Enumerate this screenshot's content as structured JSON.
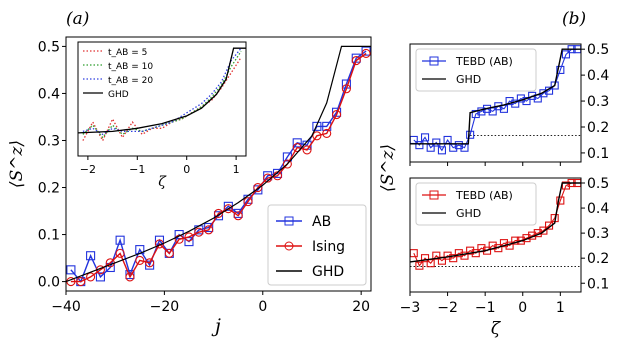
{
  "panel_labels": {
    "a": "(a)",
    "b": "(b)"
  },
  "colors": {
    "AB": "#2233dd",
    "Ising": "#dd1111",
    "GHD": "#000000"
  },
  "chart_data": [
    {
      "id": "a-main",
      "type": "line",
      "xlabel": "j",
      "ylabel": "⟨S^z⟩",
      "xlim": [
        -40,
        22
      ],
      "ylim": [
        -0.02,
        0.52
      ],
      "xticks": [
        -40,
        -20,
        0,
        20
      ],
      "xtick_labels": [
        "−40",
        "−20",
        "0",
        "20"
      ],
      "yticks": [
        0.0,
        0.1,
        0.2,
        0.3,
        0.4,
        0.5
      ],
      "ytick_labels": [
        "0.0",
        "0.1",
        "0.2",
        "0.3",
        "0.4",
        "0.5"
      ],
      "legend": {
        "placement": "bottom-right",
        "entries": [
          "AB",
          "Ising",
          "GHD"
        ]
      },
      "series": [
        {
          "name": "AB",
          "marker": "square",
          "color": "#2233dd",
          "x": [
            -39,
            -37,
            -35,
            -33,
            -31,
            -29,
            -27,
            -25,
            -23,
            -21,
            -19,
            -17,
            -15,
            -13,
            -11,
            -9,
            -7,
            -5,
            -3,
            -1,
            1,
            3,
            5,
            7,
            9,
            11,
            13,
            15,
            17,
            19,
            21
          ],
          "y": [
            0.025,
            0.0,
            0.055,
            0.01,
            0.03,
            0.088,
            0.015,
            0.068,
            0.035,
            0.088,
            0.06,
            0.1,
            0.085,
            0.11,
            0.115,
            0.14,
            0.16,
            0.145,
            0.175,
            0.195,
            0.225,
            0.23,
            0.265,
            0.295,
            0.29,
            0.33,
            0.33,
            0.36,
            0.42,
            0.475,
            0.49
          ]
        },
        {
          "name": "Ising",
          "marker": "circle",
          "color": "#dd1111",
          "x": [
            -39,
            -37,
            -35,
            -33,
            -31,
            -29,
            -27,
            -25,
            -23,
            -21,
            -19,
            -17,
            -15,
            -13,
            -11,
            -9,
            -7,
            -5,
            -3,
            -1,
            1,
            3,
            5,
            7,
            9,
            11,
            13,
            15,
            17,
            19,
            21
          ],
          "y": [
            0.0,
            0.0,
            0.01,
            0.025,
            0.04,
            0.06,
            0.01,
            0.045,
            0.04,
            0.08,
            0.06,
            0.09,
            0.095,
            0.105,
            0.11,
            0.145,
            0.155,
            0.14,
            0.17,
            0.2,
            0.22,
            0.225,
            0.25,
            0.285,
            0.28,
            0.31,
            0.315,
            0.355,
            0.41,
            0.47,
            0.485
          ]
        },
        {
          "name": "GHD",
          "marker": "none",
          "color": "#000000",
          "x": [
            -40,
            -35,
            -30,
            -25,
            -20,
            -15,
            -10,
            -5,
            0,
            5,
            10,
            13,
            16,
            22
          ],
          "y": [
            0.0,
            0.02,
            0.04,
            0.06,
            0.082,
            0.107,
            0.135,
            0.168,
            0.205,
            0.25,
            0.31,
            0.38,
            0.5,
            0.5
          ]
        }
      ]
    },
    {
      "id": "a-inset",
      "type": "line",
      "xlabel": "ζ",
      "ylabel": "",
      "xlim": [
        -2.2,
        1.2
      ],
      "ylim": [
        0.15,
        0.52
      ],
      "xticks": [
        -2,
        -1,
        0,
        1
      ],
      "xtick_labels": [
        "−2",
        "−1",
        "0",
        "1"
      ],
      "legend": {
        "placement": "top-left",
        "entries": [
          "t_AB = 5",
          "t_AB = 10",
          "t_AB = 20",
          "GHD"
        ]
      },
      "series": [
        {
          "name": "t_AB = 5",
          "style": "dotted",
          "color": "#e03030",
          "x": [
            -2.1,
            -1.9,
            -1.7,
            -1.5,
            -1.3,
            -1.1,
            -0.9,
            -0.7,
            -0.5,
            -0.3,
            -0.1,
            0.1,
            0.3,
            0.5,
            0.7,
            0.9,
            1.1
          ],
          "y": [
            0.2,
            0.26,
            0.2,
            0.27,
            0.21,
            0.26,
            0.22,
            0.24,
            0.24,
            0.26,
            0.27,
            0.29,
            0.31,
            0.33,
            0.37,
            0.42,
            0.47
          ]
        },
        {
          "name": "t_AB = 10",
          "style": "dotted",
          "color": "#2e9e2e",
          "x": [
            -2.1,
            -1.9,
            -1.7,
            -1.5,
            -1.3,
            -1.1,
            -0.9,
            -0.7,
            -0.5,
            -0.3,
            -0.1,
            0.1,
            0.3,
            0.5,
            0.7,
            0.9,
            1.1
          ],
          "y": [
            0.22,
            0.25,
            0.21,
            0.25,
            0.22,
            0.24,
            0.23,
            0.24,
            0.25,
            0.26,
            0.27,
            0.29,
            0.31,
            0.34,
            0.38,
            0.44,
            0.49
          ]
        },
        {
          "name": "t_AB = 20",
          "style": "dotted",
          "color": "#3040e0",
          "x": [
            -2.1,
            -1.9,
            -1.7,
            -1.5,
            -1.3,
            -1.1,
            -0.9,
            -0.7,
            -0.5,
            -0.3,
            -0.1,
            0.1,
            0.3,
            0.5,
            0.7,
            0.9,
            1.1
          ],
          "y": [
            0.23,
            0.24,
            0.22,
            0.24,
            0.23,
            0.23,
            0.23,
            0.24,
            0.25,
            0.26,
            0.28,
            0.3,
            0.32,
            0.35,
            0.39,
            0.46,
            0.5
          ]
        },
        {
          "name": "GHD",
          "style": "solid",
          "color": "#000000",
          "x": [
            -2.2,
            -1.5,
            -1.0,
            -0.5,
            0.0,
            0.3,
            0.6,
            0.8,
            0.95,
            1.2
          ],
          "y": [
            0.225,
            0.23,
            0.24,
            0.255,
            0.28,
            0.305,
            0.35,
            0.4,
            0.5,
            0.5
          ]
        }
      ]
    },
    {
      "id": "b-top",
      "type": "line",
      "xlabel": "",
      "ylabel": "⟨S^z⟩",
      "xlim": [
        -3.0,
        1.55
      ],
      "ylim": [
        0.065,
        0.52
      ],
      "xticks": [
        -3,
        -2,
        -1,
        0,
        1
      ],
      "yticks": [
        0.1,
        0.2,
        0.3,
        0.4,
        0.5
      ],
      "ytick_labels": [
        "0.1",
        "0.2",
        "0.3",
        "0.4",
        "0.5"
      ],
      "legend": {
        "placement": "top-left",
        "entries": [
          "TEBD (AB)",
          "GHD"
        ]
      },
      "reference_line": {
        "y": 0.167,
        "style": "dotted",
        "from_x": -1.4
      },
      "series": [
        {
          "name": "TEBD (AB)",
          "marker": "square",
          "color": "#2233dd",
          "x": [
            -2.9,
            -2.75,
            -2.6,
            -2.45,
            -2.3,
            -2.15,
            -2.0,
            -1.85,
            -1.7,
            -1.55,
            -1.4,
            -1.25,
            -1.1,
            -0.95,
            -0.8,
            -0.65,
            -0.5,
            -0.35,
            -0.2,
            -0.05,
            0.1,
            0.25,
            0.4,
            0.55,
            0.7,
            0.85,
            1.0,
            1.15,
            1.3,
            1.45
          ],
          "y": [
            0.15,
            0.13,
            0.16,
            0.12,
            0.14,
            0.11,
            0.15,
            0.12,
            0.13,
            0.12,
            0.17,
            0.25,
            0.26,
            0.27,
            0.26,
            0.28,
            0.27,
            0.3,
            0.29,
            0.31,
            0.3,
            0.32,
            0.31,
            0.33,
            0.34,
            0.36,
            0.42,
            0.48,
            0.5,
            0.5
          ]
        },
        {
          "name": "GHD",
          "marker": "none",
          "color": "#000000",
          "x": [
            -3.0,
            -1.45,
            -1.4,
            -1.0,
            -0.5,
            0.0,
            0.5,
            0.85,
            0.95,
            1.05,
            1.55
          ],
          "y": [
            0.135,
            0.135,
            0.255,
            0.27,
            0.285,
            0.305,
            0.33,
            0.36,
            0.43,
            0.5,
            0.5
          ]
        }
      ]
    },
    {
      "id": "b-bottom",
      "type": "line",
      "xlabel": "ζ",
      "ylabel": "",
      "xlim": [
        -3.0,
        1.55
      ],
      "ylim": [
        0.065,
        0.52
      ],
      "xticks": [
        -3,
        -2,
        -1,
        0,
        1
      ],
      "xtick_labels": [
        "−3",
        "−2",
        "−1",
        "0",
        "1"
      ],
      "yticks": [
        0.1,
        0.2,
        0.3,
        0.4,
        0.5
      ],
      "ytick_labels": [
        "0.1",
        "0.2",
        "0.3",
        "0.4",
        "0.5"
      ],
      "legend": {
        "placement": "top-left",
        "entries": [
          "TEBD (AB)",
          "GHD"
        ]
      },
      "reference_line": {
        "y": 0.167,
        "style": "dotted",
        "from_x": -3.0
      },
      "series": [
        {
          "name": "TEBD (AB)",
          "marker": "square",
          "color": "#dd1111",
          "x": [
            -2.9,
            -2.75,
            -2.6,
            -2.45,
            -2.3,
            -2.15,
            -2.0,
            -1.85,
            -1.7,
            -1.55,
            -1.4,
            -1.25,
            -1.1,
            -0.95,
            -0.8,
            -0.65,
            -0.5,
            -0.35,
            -0.2,
            -0.05,
            0.1,
            0.25,
            0.4,
            0.55,
            0.7,
            0.85,
            1.0,
            1.15,
            1.3,
            1.45
          ],
          "y": [
            0.22,
            0.17,
            0.2,
            0.18,
            0.21,
            0.19,
            0.21,
            0.2,
            0.22,
            0.21,
            0.23,
            0.22,
            0.24,
            0.23,
            0.25,
            0.24,
            0.26,
            0.25,
            0.27,
            0.27,
            0.28,
            0.29,
            0.3,
            0.31,
            0.33,
            0.36,
            0.43,
            0.49,
            0.5,
            0.5
          ]
        },
        {
          "name": "GHD",
          "marker": "none",
          "color": "#000000",
          "x": [
            -3.0,
            -2.0,
            -1.0,
            0.0,
            0.5,
            0.85,
            0.95,
            1.05,
            1.55
          ],
          "y": [
            0.185,
            0.205,
            0.23,
            0.27,
            0.3,
            0.34,
            0.43,
            0.5,
            0.5
          ]
        }
      ]
    }
  ]
}
